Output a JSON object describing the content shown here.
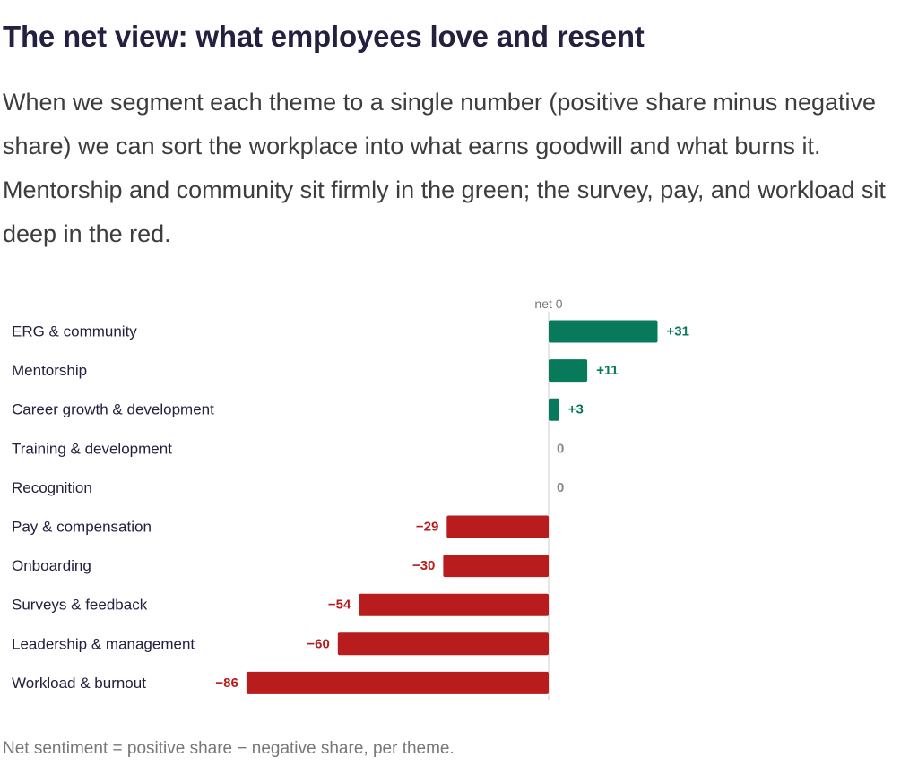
{
  "heading": "The net view: what employees love and resent",
  "intro": "When we segment each theme to a single number (positive share minus negative share) we can sort the workplace into what earns goodwill and what burns it. Mentorship and community sit firmly in the green; the survey, pay, and workload sit deep in the red.",
  "footnote": "Net sentiment = positive share − negative share, per theme.",
  "chart_data": {
    "type": "bar",
    "orientation": "horizontal",
    "title": "",
    "xlabel": "",
    "ylabel": "",
    "zero_label": "net 0",
    "categories": [
      "ERG & community",
      "Mentorship",
      "Career growth & development",
      "Training & development",
      "Recognition",
      "Pay & compensation",
      "Onboarding",
      "Surveys & feedback",
      "Leadership & management",
      "Workload & burnout"
    ],
    "values": [
      31,
      11,
      3,
      0,
      0,
      -29,
      -30,
      -54,
      -60,
      -86
    ],
    "value_labels": [
      "+31",
      "+11",
      "+3",
      "0",
      "0",
      "−29",
      "−30",
      "−54",
      "−60",
      "−86"
    ],
    "xlim": [
      -86,
      31
    ],
    "grid": false,
    "legend": "none",
    "colors": {
      "positive": "#08795a",
      "negative": "#b91c1c",
      "zero": "#888888",
      "axis": "#cccccc"
    }
  }
}
